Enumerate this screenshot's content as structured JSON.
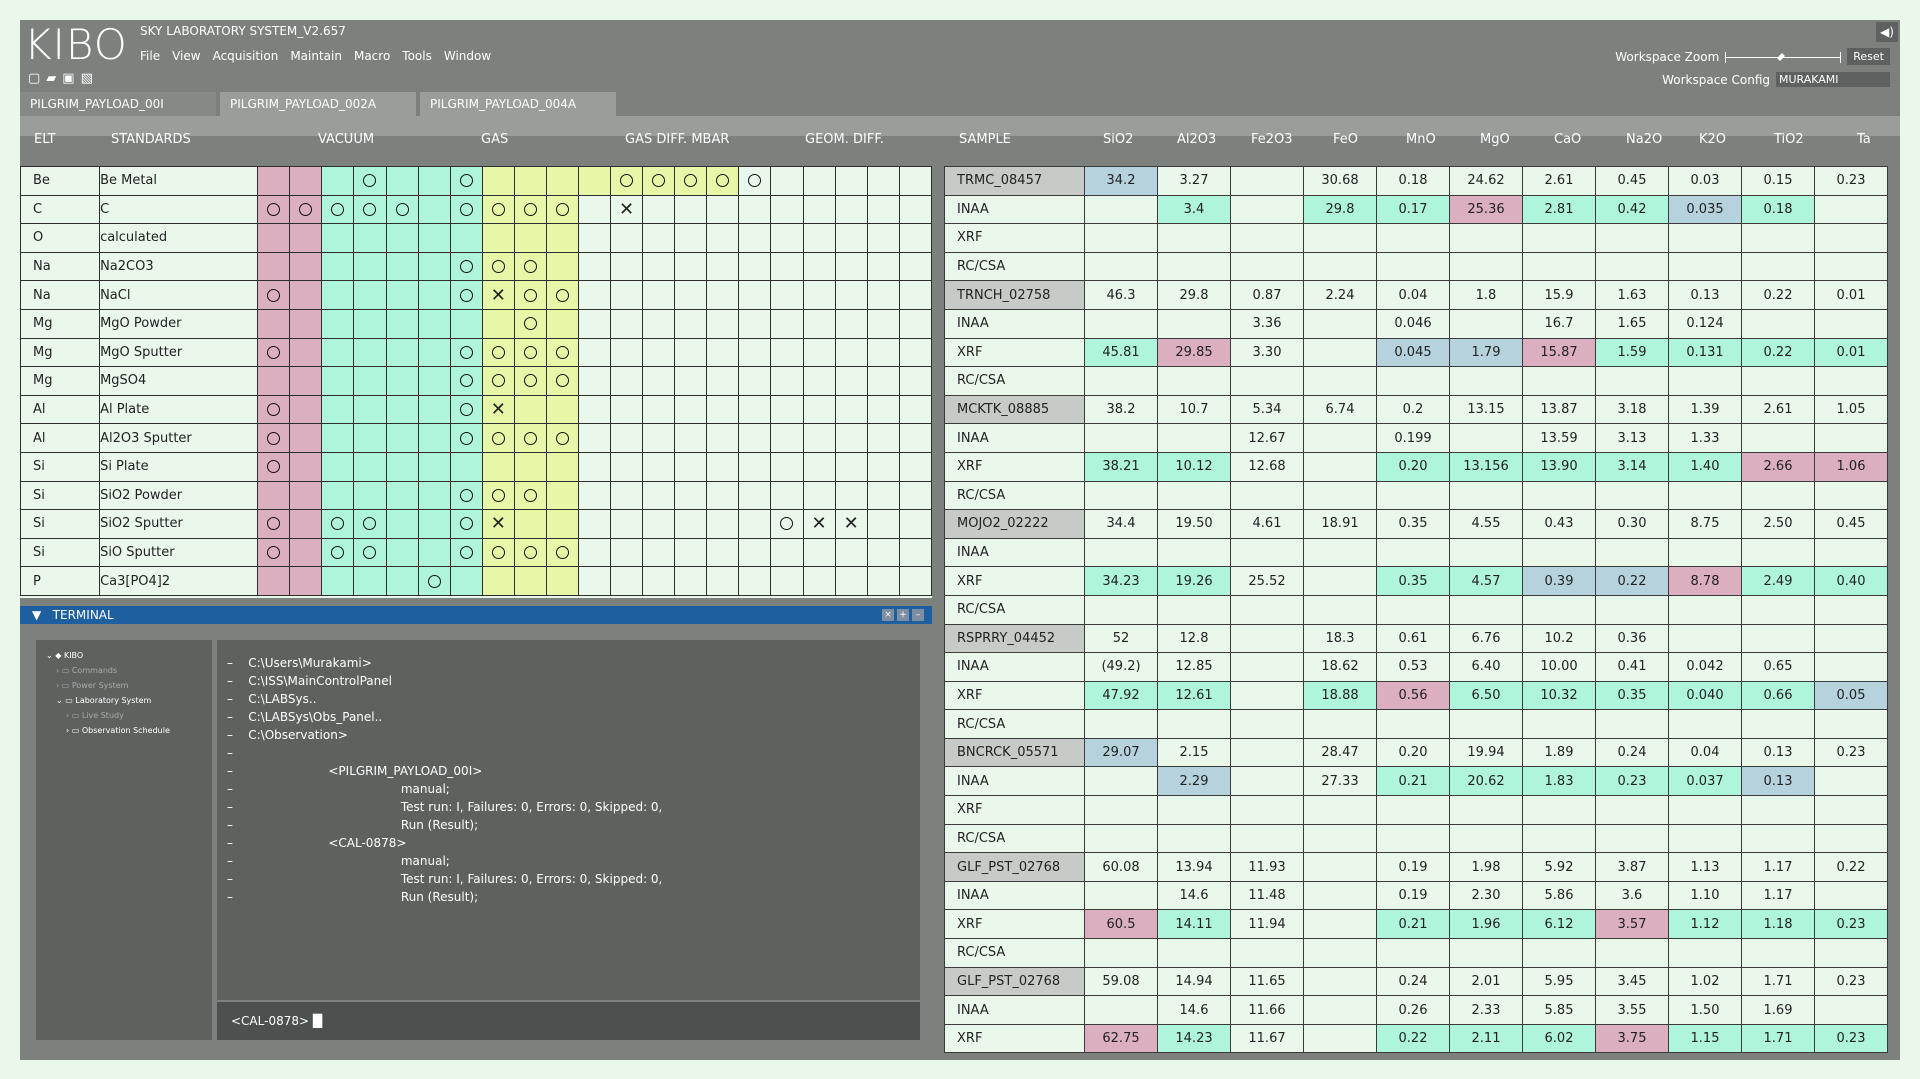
{
  "app": {
    "logo": "KIBO",
    "title": "SKY LABORATORY SYSTEM_V2.657",
    "menu": [
      "File",
      "View",
      "Acquisition",
      "Maintain",
      "Macro",
      "Tools",
      "Window"
    ],
    "workspace_zoom_label": "Workspace Zoom",
    "zoom_level": 0.48,
    "reset_label": "Reset",
    "workspace_config_label": "Workspace Config",
    "workspace_config_value": "MURAKAMI"
  },
  "tabs": [
    "PILGRIM_PAYLOAD_00I",
    "PILGRIM_PAYLOAD_002A",
    "PILGRIM_PAYLOAD_004A"
  ],
  "headers": {
    "elt": "ELT",
    "standards": "STANDARDS",
    "vacuum": "VACUUM",
    "gas": "GAS",
    "gas_diff": "GAS DIFF. MBAR",
    "geom_diff": "GEOM. DIFF.",
    "sample": "SAMPLE",
    "oxides": [
      "SiO2",
      "Al2O3",
      "Fe2O3",
      "FeO",
      "MnO",
      "MgO",
      "CaO",
      "Na2O",
      "K2O",
      "TiO2",
      "Ta"
    ]
  },
  "standards": [
    {
      "elt": "Be",
      "name": "Be Metal",
      "marks": [
        "",
        "",
        "",
        "O",
        "",
        "",
        "O",
        "",
        "",
        "",
        "",
        "O",
        "O",
        "O",
        "O",
        "O",
        "",
        "",
        "",
        "",
        ""
      ]
    },
    {
      "elt": "C",
      "name": "C",
      "marks": [
        "O",
        "O",
        "O",
        "O",
        "O",
        "",
        "O",
        "O",
        "O",
        "O",
        "",
        "X",
        "",
        "",
        "",
        "",
        "",
        "",
        "",
        "",
        ""
      ]
    },
    {
      "elt": "O",
      "name": "calculated",
      "marks": [
        "",
        "",
        "",
        "",
        "",
        "",
        "",
        "",
        "",
        "",
        "",
        "",
        "",
        "",
        "",
        "",
        "",
        "",
        "",
        "",
        ""
      ]
    },
    {
      "elt": "Na",
      "name": "Na2CO3",
      "marks": [
        "",
        "",
        "",
        "",
        "",
        "",
        "O",
        "O",
        "O",
        "",
        "",
        "",
        "",
        "",
        "",
        "",
        "",
        "",
        "",
        "",
        ""
      ]
    },
    {
      "elt": "Na",
      "name": "NaCl",
      "marks": [
        "O",
        "",
        "",
        "",
        "",
        "",
        "O",
        "X",
        "O",
        "O",
        "",
        "",
        "",
        "",
        "",
        "",
        "",
        "",
        "",
        "",
        ""
      ]
    },
    {
      "elt": "Mg",
      "name": "MgO Powder",
      "marks": [
        "",
        "",
        "",
        "",
        "",
        "",
        "",
        "",
        "O",
        "",
        "",
        "",
        "",
        "",
        "",
        "",
        "",
        "",
        "",
        "",
        ""
      ]
    },
    {
      "elt": "Mg",
      "name": "MgO Sputter",
      "marks": [
        "O",
        "",
        "",
        "",
        "",
        "",
        "O",
        "O",
        "O",
        "O",
        "",
        "",
        "",
        "",
        "",
        "",
        "",
        "",
        "",
        "",
        ""
      ]
    },
    {
      "elt": "Mg",
      "name": "MgSO4",
      "marks": [
        "",
        "",
        "",
        "",
        "",
        "",
        "O",
        "O",
        "O",
        "O",
        "",
        "",
        "",
        "",
        "",
        "",
        "",
        "",
        "",
        "",
        ""
      ]
    },
    {
      "elt": "Al",
      "name": "Al Plate",
      "marks": [
        "O",
        "",
        "",
        "",
        "",
        "",
        "O",
        "X",
        "",
        "",
        "",
        "",
        "",
        "",
        "",
        "",
        "",
        "",
        "",
        "",
        ""
      ]
    },
    {
      "elt": "Al",
      "name": "Al2O3 Sputter",
      "marks": [
        "O",
        "",
        "",
        "",
        "",
        "",
        "O",
        "O",
        "O",
        "O",
        "",
        "",
        "",
        "",
        "",
        "",
        "",
        "",
        "",
        "",
        ""
      ]
    },
    {
      "elt": "Si",
      "name": "Si Plate",
      "marks": [
        "O",
        "",
        "",
        "",
        "",
        "",
        "",
        "",
        "",
        "",
        "",
        "",
        "",
        "",
        "",
        "",
        "",
        "",
        "",
        "",
        ""
      ]
    },
    {
      "elt": "Si",
      "name": "SiO2 Powder",
      "marks": [
        "",
        "",
        "",
        "",
        "",
        "",
        "O",
        "O",
        "O",
        "",
        "",
        "",
        "",
        "",
        "",
        "",
        "",
        "",
        "",
        "",
        ""
      ]
    },
    {
      "elt": "Si",
      "name": "SiO2 Sputter",
      "marks": [
        "O",
        "",
        "O",
        "O",
        "",
        "",
        "O",
        "X",
        "",
        "",
        "",
        "",
        "",
        "",
        "",
        "",
        "O",
        "X",
        "X",
        "",
        ""
      ]
    },
    {
      "elt": "Si",
      "name": "SiO Sputter",
      "marks": [
        "O",
        "",
        "O",
        "O",
        "",
        "",
        "O",
        "O",
        "O",
        "O",
        "",
        "",
        "",
        "",
        "",
        "",
        "",
        "",
        "",
        "",
        ""
      ]
    },
    {
      "elt": "P",
      "name": "Ca3[PO4]2",
      "marks": [
        "",
        "",
        "",
        "",
        "",
        "O",
        "",
        "",
        "",
        "",
        "",
        "",
        "",
        "",
        "",
        "",
        "",
        "",
        "",
        "",
        ""
      ]
    }
  ],
  "terminal": {
    "title": "TERMINAL",
    "tree": [
      {
        "label": "KIBO",
        "level": 0,
        "dim": false
      },
      {
        "label": "Commands",
        "level": 1,
        "dim": true
      },
      {
        "label": "Power System",
        "level": 1,
        "dim": true
      },
      {
        "label": "Laboratory System",
        "level": 1,
        "dim": false
      },
      {
        "label": "Live Study",
        "level": 2,
        "dim": true
      },
      {
        "label": "Observation Schedule",
        "level": 2,
        "dim": false
      }
    ],
    "lines": [
      "–    C:\\Users\\Murakami>",
      "–    C:\\ISS\\MainControlPanel",
      "–    C:\\LABSys..",
      "–    C:\\LABSys\\Obs_Panel..",
      "–    C:\\Observation>",
      "–",
      "–                         <PILGRIM_PAYLOAD_00I>",
      "–                                            manual;",
      "–                                            Test run: I, Failures: 0, Errors: 0, Skipped: 0,",
      "–                                            Run (Result);",
      "–                         <CAL-0878>",
      "–                                            manual;",
      "–                                            Test run: I, Failures: 0, Errors: 0, Skipped: 0,",
      "–                                            Run (Result);"
    ],
    "prompt": "<CAL-0878> █"
  },
  "samples": [
    [
      "TRMC_08457",
      "34.2",
      "3.27",
      "",
      "30.68",
      "0.18",
      "24.62",
      "2.61",
      "0.45",
      "0.03",
      "0.15",
      "0.23"
    ],
    [
      "INAA",
      "",
      "3.4",
      "",
      "29.8",
      "0.17",
      "25.36",
      "2.81",
      "0.42",
      "0.035",
      "0.18",
      ""
    ],
    [
      "XRF",
      "",
      "",
      "",
      "",
      "",
      "",
      "",
      "",
      "",
      "",
      ""
    ],
    [
      "RC/CSA",
      "",
      "",
      "",
      "",
      "",
      "",
      "",
      "",
      "",
      "",
      ""
    ],
    [
      "TRNCH_02758",
      "46.3",
      "29.8",
      "0.87",
      "2.24",
      "0.04",
      "1.8",
      "15.9",
      "1.63",
      "0.13",
      "0.22",
      "0.01"
    ],
    [
      "INAA",
      "",
      "",
      "3.36",
      "",
      "0.046",
      "",
      "16.7",
      "1.65",
      "0.124",
      "",
      ""
    ],
    [
      "XRF",
      "45.81",
      "29.85",
      "3.30",
      "",
      "0.045",
      "1.79",
      "15.87",
      "1.59",
      "0.131",
      "0.22",
      "0.01"
    ],
    [
      "RC/CSA",
      "",
      "",
      "",
      "",
      "",
      "",
      "",
      "",
      "",
      "",
      ""
    ],
    [
      "MCKTK_08885",
      "38.2",
      "10.7",
      "5.34",
      "6.74",
      "0.2",
      "13.15",
      "13.87",
      "3.18",
      "1.39",
      "2.61",
      "1.05"
    ],
    [
      "INAA",
      "",
      "",
      "12.67",
      "",
      "0.199",
      "",
      "13.59",
      "3.13",
      "1.33",
      "",
      ""
    ],
    [
      "XRF",
      "38.21",
      "10.12",
      "12.68",
      "",
      "0.20",
      "13.156",
      "13.90",
      "3.14",
      "1.40",
      "2.66",
      "1.06"
    ],
    [
      "RC/CSA",
      "",
      "",
      "",
      "",
      "",
      "",
      "",
      "",
      "",
      "",
      ""
    ],
    [
      "MOJO2_02222",
      "34.4",
      "19.50",
      "4.61",
      "18.91",
      "0.35",
      "4.55",
      "0.43",
      "0.30",
      "8.75",
      "2.50",
      "0.45"
    ],
    [
      "INAA",
      "",
      "",
      "",
      "",
      "",
      "",
      "",
      "",
      "",
      "",
      ""
    ],
    [
      "XRF",
      "34.23",
      "19.26",
      "25.52",
      "",
      "0.35",
      "4.57",
      "0.39",
      "0.22",
      "8.78",
      "2.49",
      "0.40"
    ],
    [
      "RC/CSA",
      "",
      "",
      "",
      "",
      "",
      "",
      "",
      "",
      "",
      "",
      ""
    ],
    [
      "RSPRRY_04452",
      "52",
      "12.8",
      "",
      "18.3",
      "0.61",
      "6.76",
      "10.2",
      "0.36",
      "",
      "",
      ""
    ],
    [
      "INAA",
      "(49.2)",
      "12.85",
      "",
      "18.62",
      "0.53",
      "6.40",
      "10.00",
      "0.41",
      "0.042",
      "0.65",
      ""
    ],
    [
      "XRF",
      "47.92",
      "12.61",
      "",
      "18.88",
      "0.56",
      "6.50",
      "10.32",
      "0.35",
      "0.040",
      "0.66",
      "0.05"
    ],
    [
      "RC/CSA",
      "",
      "",
      "",
      "",
      "",
      "",
      "",
      "",
      "",
      "",
      ""
    ],
    [
      "BNCRCK_05571",
      "29.07",
      "2.15",
      "",
      "28.47",
      "0.20",
      "19.94",
      "1.89",
      "0.24",
      "0.04",
      "0.13",
      "0.23"
    ],
    [
      "INAA",
      "",
      "2.29",
      "",
      "27.33",
      "0.21",
      "20.62",
      "1.83",
      "0.23",
      "0.037",
      "0.13",
      ""
    ],
    [
      "XRF",
      "",
      "",
      "",
      "",
      "",
      "",
      "",
      "",
      "",
      "",
      ""
    ],
    [
      "RC/CSA",
      "",
      "",
      "",
      "",
      "",
      "",
      "",
      "",
      "",
      "",
      ""
    ],
    [
      "GLF_PST_02768",
      "60.08",
      "13.94",
      "11.93",
      "",
      "0.19",
      "1.98",
      "5.92",
      "3.87",
      "1.13",
      "1.17",
      "0.22"
    ],
    [
      "INAA",
      "",
      "14.6",
      "11.48",
      "",
      "0.19",
      "2.30",
      "5.86",
      "3.6",
      "1.10",
      "1.17",
      ""
    ],
    [
      "XRF",
      "60.5",
      "14.11",
      "11.94",
      "",
      "0.21",
      "1.96",
      "6.12",
      "3.57",
      "1.12",
      "1.18",
      "0.23"
    ],
    [
      "RC/CSA",
      "",
      "",
      "",
      "",
      "",
      "",
      "",
      "",
      "",
      "",
      ""
    ],
    [
      "GLF_PST_02768",
      "59.08",
      "14.94",
      "11.65",
      "",
      "0.24",
      "2.01",
      "5.95",
      "3.45",
      "1.02",
      "1.71",
      "0.23"
    ],
    [
      "INAA",
      "",
      "14.6",
      "11.66",
      "",
      "0.26",
      "2.33",
      "5.85",
      "3.55",
      "1.50",
      "1.69",
      ""
    ],
    [
      "XRF",
      "62.75",
      "14.23",
      "11.67",
      "",
      "0.22",
      "2.11",
      "6.02",
      "3.75",
      "1.15",
      "1.71",
      "0.23"
    ]
  ],
  "highlights": {
    "colors": {
      "a": "#aef5dc",
      "p": "#dbaec0",
      "b": "#b6d3dd",
      "header": "#c7cbc7"
    },
    "cells": {
      "0": {
        "1": "b"
      },
      "1": {
        "2": "a",
        "4": "a",
        "5": "a",
        "6": "p",
        "7": "a",
        "8": "a",
        "9": "b",
        "10": "a"
      },
      "6": {
        "1": "a",
        "2": "p",
        "5": "b",
        "6": "b",
        "7": "p",
        "8": "a",
        "9": "a",
        "10": "a",
        "11": "a"
      },
      "10": {
        "1": "a",
        "2": "a",
        "5": "a",
        "6": "a",
        "7": "a",
        "8": "a",
        "9": "a",
        "10": "p",
        "11": "p"
      },
      "14": {
        "1": "a",
        "2": "a",
        "5": "a",
        "6": "a",
        "7": "b",
        "8": "b",
        "9": "p",
        "10": "a",
        "11": "a"
      },
      "18": {
        "1": "a",
        "2": "a",
        "4": "a",
        "5": "p",
        "6": "a",
        "7": "a",
        "8": "a",
        "9": "a",
        "10": "a",
        "11": "b"
      },
      "20": {
        "1": "b"
      },
      "21": {
        "2": "b",
        "5": "a",
        "6": "a",
        "7": "a",
        "8": "a",
        "9": "a",
        "10": "b"
      },
      "26": {
        "1": "p",
        "2": "a",
        "5": "a",
        "6": "a",
        "7": "a",
        "8": "p",
        "9": "a",
        "10": "a",
        "11": "a"
      },
      "30": {
        "1": "p",
        "2": "a",
        "5": "a",
        "6": "a",
        "7": "a",
        "8": "p",
        "9": "a",
        "10": "a",
        "11": "a"
      }
    }
  }
}
